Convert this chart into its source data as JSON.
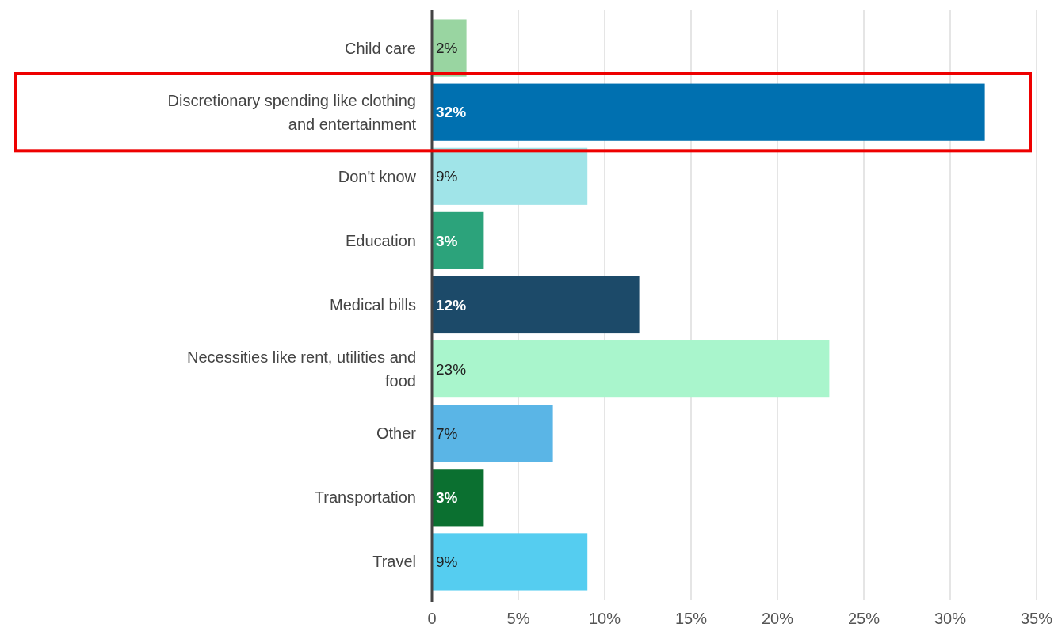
{
  "chart_data": {
    "type": "bar",
    "orientation": "horizontal",
    "categories": [
      "Child care",
      "Discretionary spending like clothing and entertainment",
      "Don't know",
      "Education",
      "Medical bills",
      "Necessities like rent, utilities and food",
      "Other",
      "Transportation",
      "Travel"
    ],
    "values": [
      2,
      32,
      9,
      3,
      12,
      23,
      7,
      3,
      9
    ],
    "colors": [
      "#99d5a1",
      "#0070b0",
      "#a0e4e8",
      "#2ca37b",
      "#1c4a69",
      "#a9f5cc",
      "#5ab5e6",
      "#0b7030",
      "#55cdf0"
    ],
    "xlim": [
      0,
      35
    ],
    "xticks": [
      0,
      {
        "value": 5,
        "label": "5%"
      },
      {
        "value": 10,
        "label": "10%"
      },
      {
        "value": 15,
        "label": "15%"
      },
      {
        "value": 20,
        "label": "20%"
      },
      {
        "value": 25,
        "label": "25%"
      },
      {
        "value": 30,
        "label": "30%"
      },
      {
        "value": 35,
        "label": "35%"
      }
    ],
    "grid": "x",
    "value_labels": [
      "2%",
      "32%",
      "9%",
      "3%",
      "12%",
      "23%",
      "7%",
      "3%",
      "9%"
    ]
  }
}
